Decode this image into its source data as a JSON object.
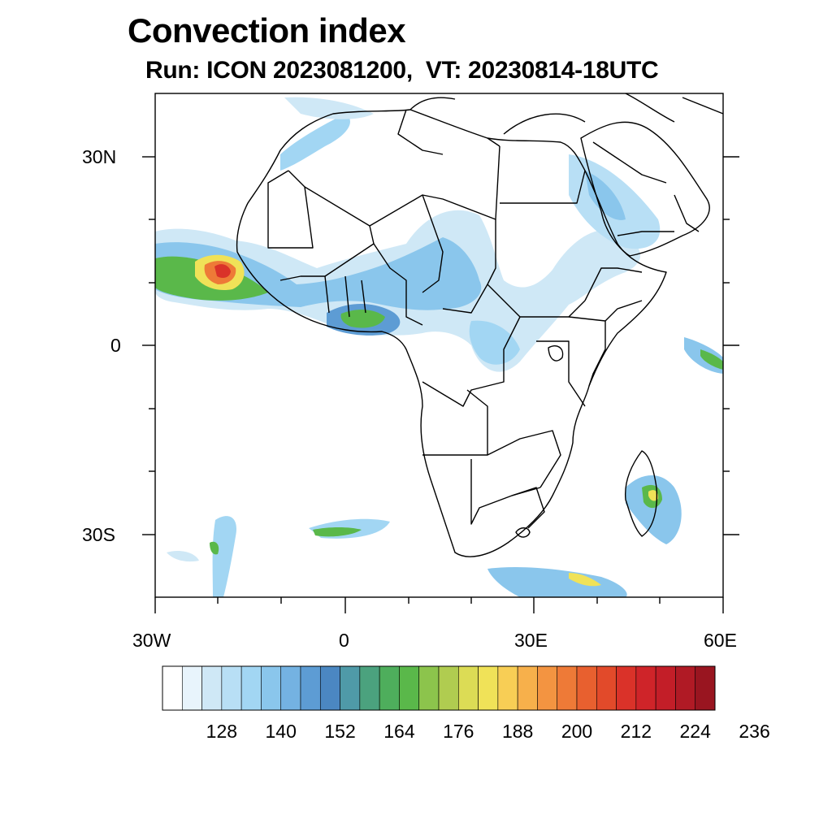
{
  "title": "Convection index",
  "subtitle": "Run: ICON 2023081200,  VT: 20230814-18UTC",
  "axes": {
    "lat_labels": [
      "30N",
      "0",
      "30S"
    ],
    "lon_labels": [
      "30W",
      "0",
      "30E",
      "60E"
    ],
    "lat_range": [
      -40,
      40
    ],
    "lon_range": [
      -30,
      60
    ]
  },
  "colorbar": {
    "labels": [
      "128",
      "140",
      "152",
      "164",
      "176",
      "188",
      "200",
      "212",
      "224",
      "236"
    ],
    "colors": [
      "#ffffff",
      "#e8f4fc",
      "#cfe8f6",
      "#b8dff5",
      "#a2d6f3",
      "#8ac6ec",
      "#74b2e2",
      "#5d9cd4",
      "#4b87c2",
      "#4f9aa8",
      "#4ba27e",
      "#4eae5c",
      "#5ab84a",
      "#8cc44c",
      "#b0cc50",
      "#dcdc55",
      "#f0e258",
      "#f8ce55",
      "#f7b04b",
      "#f39441",
      "#ee7a37",
      "#e8602f",
      "#e24a2a",
      "#da3229",
      "#cf2429",
      "#c31e28",
      "#b01a25",
      "#991520"
    ]
  }
}
